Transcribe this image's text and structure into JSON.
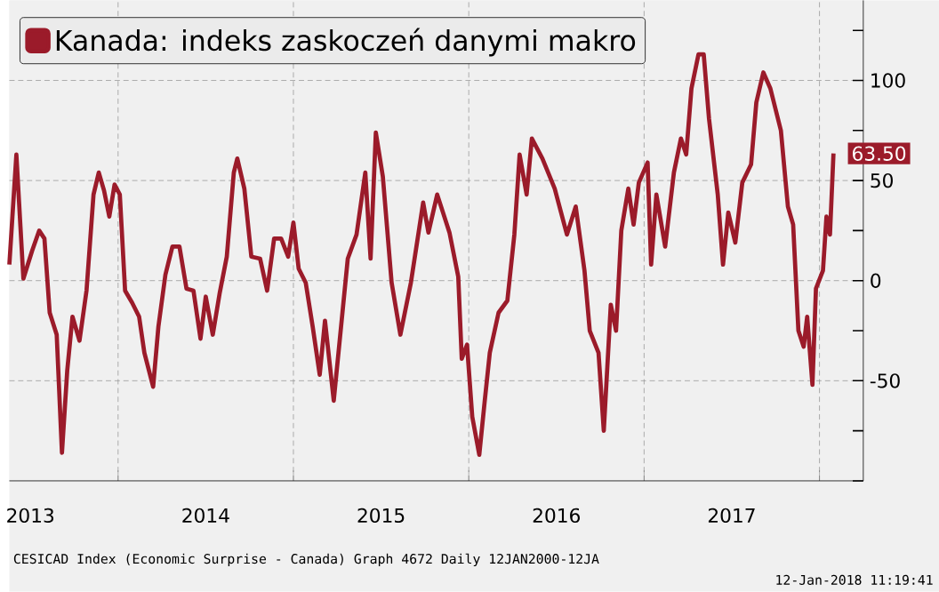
{
  "chart_data": {
    "type": "line",
    "xlim": [
      2013.38,
      2018.25
    ],
    "xticks": [
      {
        "value": 2013.5,
        "label": "2013"
      },
      {
        "value": 2014,
        "label": null
      },
      {
        "value": 2014.5,
        "label": "2014"
      },
      {
        "value": 2015,
        "label": null
      },
      {
        "value": 2015.5,
        "label": "2015"
      },
      {
        "value": 2016,
        "label": null
      },
      {
        "value": 2016.5,
        "label": "2016"
      },
      {
        "value": 2017,
        "label": null
      },
      {
        "value": 2017.5,
        "label": "2017"
      },
      {
        "value": 2018,
        "label": null
      }
    ],
    "ylim": [
      -100,
      140
    ],
    "yticks": [
      {
        "value": -100,
        "label": null
      },
      {
        "value": -75,
        "label": null
      },
      -50,
      {
        "value": -25,
        "label": null
      },
      0,
      {
        "value": 25,
        "label": null
      },
      50,
      {
        "value": 75,
        "label": null
      },
      100,
      {
        "value": 125,
        "label": null
      }
    ],
    "grid": true,
    "legend": "top left",
    "line_style": "solid",
    "marker": "none",
    "series": [
      {
        "name": "Kanada: indeks zaskoczeń danymi makro",
        "color": "#9b1b2a",
        "x": [
          2013.38,
          2013.42,
          2013.46,
          2013.51,
          2013.55,
          2013.58,
          2013.61,
          2013.65,
          2013.68,
          2013.71,
          2013.74,
          2013.78,
          2013.82,
          2013.86,
          2013.89,
          2013.92,
          2013.95,
          2013.98,
          2014.01,
          2014.04,
          2014.08,
          2014.12,
          2014.15,
          2014.2,
          2014.23,
          2014.27,
          2014.31,
          2014.35,
          2014.39,
          2014.43,
          2014.47,
          2014.5,
          2014.54,
          2014.58,
          2014.62,
          2014.66,
          2014.68,
          2014.72,
          2014.76,
          2014.81,
          2014.85,
          2014.89,
          2014.93,
          2014.97,
          2015.0,
          2015.03,
          2015.07,
          2015.11,
          2015.15,
          2015.18,
          2015.23,
          2015.31,
          2015.36,
          2015.41,
          2015.44,
          2015.47,
          2015.51,
          2015.56,
          2015.61,
          2015.67,
          2015.74,
          2015.77,
          2015.82,
          2015.89,
          2015.94,
          2015.96,
          2015.99,
          2016.02,
          2016.06,
          2016.09,
          2016.12,
          2016.17,
          2016.22,
          2016.26,
          2016.29,
          2016.33,
          2016.36,
          2016.42,
          2016.49,
          2016.56,
          2016.61,
          2016.66,
          2016.69,
          2016.74,
          2016.77,
          2016.81,
          2016.84,
          2016.87,
          2016.91,
          2016.94,
          2016.97,
          2017.02,
          2017.04,
          2017.07,
          2017.12,
          2017.17,
          2017.21,
          2017.24,
          2017.27,
          2017.31,
          2017.34,
          2017.37,
          2017.42,
          2017.45,
          2017.48,
          2017.52,
          2017.56,
          2017.61,
          2017.64,
          2017.68,
          2017.72,
          2017.78,
          2017.82,
          2017.85,
          2017.88,
          2017.91,
          2017.93,
          2017.96,
          2017.98,
          2018.02,
          2018.04,
          2018.06,
          2018.08
        ],
        "values": [
          8,
          63,
          1,
          15,
          25,
          21,
          -16,
          -27,
          -86,
          -45,
          -18,
          -30,
          -5,
          43,
          54,
          45,
          32,
          48,
          43,
          -5,
          -11,
          -18,
          -36,
          -53,
          -23,
          3,
          17,
          17,
          -4,
          -5,
          -29,
          -8,
          -27,
          -6,
          12,
          54,
          61,
          46,
          12,
          11,
          -5,
          21,
          21,
          12,
          29,
          6,
          -1,
          -23,
          -47,
          -20,
          -60,
          11,
          23,
          54,
          11,
          74,
          52,
          -1,
          -27,
          -1,
          39,
          24,
          43,
          24,
          2,
          -39,
          -32,
          -68,
          -87,
          -61,
          -36,
          -16,
          -10,
          23,
          63,
          43,
          71,
          61,
          46,
          23,
          37,
          5,
          -25,
          -36,
          -75,
          -12,
          -25,
          25,
          46,
          28,
          49,
          59,
          8,
          43,
          17,
          54,
          71,
          63,
          96,
          113,
          113,
          81,
          43,
          8,
          34,
          19,
          49,
          58,
          89,
          104,
          96,
          75,
          37,
          28,
          -25,
          -33,
          -18,
          -52,
          -4,
          5,
          32,
          23,
          63.5
        ]
      }
    ],
    "annotations": [
      {
        "text": "63.50",
        "x": 2018.08,
        "y": 63.5
      },
      "CESICAD Index (Economic Surprise - Canada) Graph 4672 Daily 12JAN2000-12JA",
      "12-Jan-2018 11:19:41"
    ]
  }
}
